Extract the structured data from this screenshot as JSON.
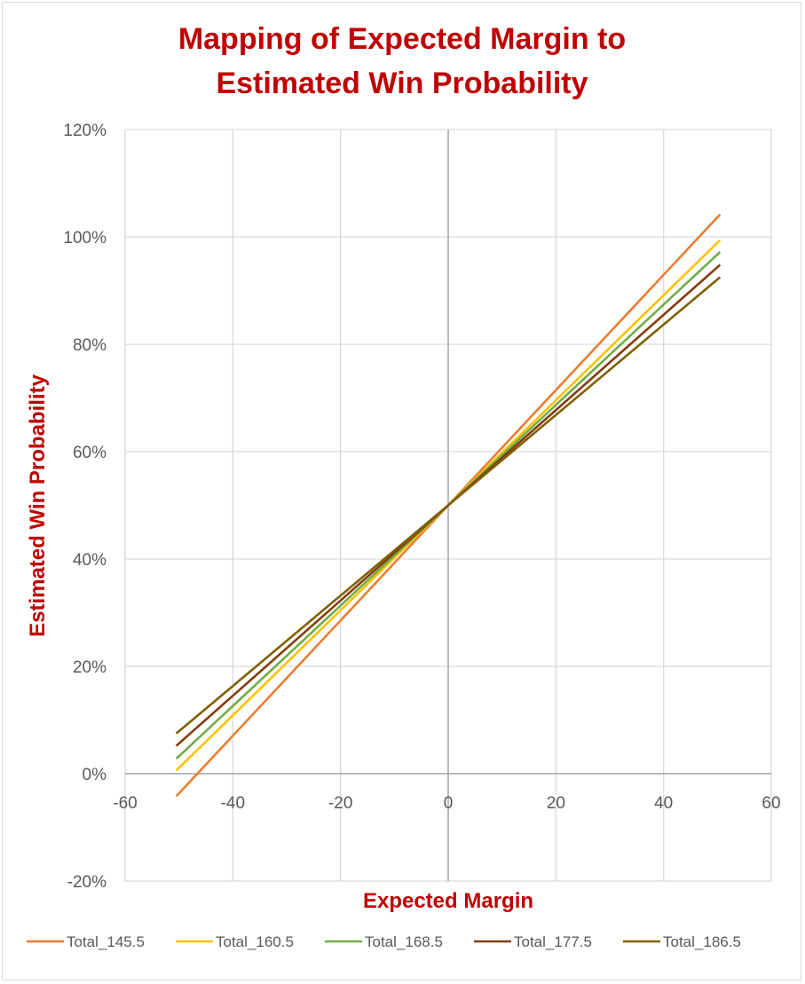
{
  "chart_data": {
    "type": "line",
    "title_line1": "Mapping of Expected Margin to",
    "title_line2": "Estimated Win Probability",
    "xlabel": "Expected Margin",
    "ylabel": "Estimated Win Probability",
    "xlim": [
      -60,
      60
    ],
    "ylim": [
      -20,
      120
    ],
    "x_ticks": [
      -60,
      -40,
      -20,
      0,
      20,
      40,
      60
    ],
    "x_tick_labels": [
      "-60",
      "-40",
      "-20",
      "0",
      "20",
      "40",
      "60"
    ],
    "y_ticks": [
      -20,
      0,
      20,
      40,
      60,
      80,
      100,
      120
    ],
    "y_tick_labels": [
      "-20%",
      "0%",
      "20%",
      "40%",
      "60%",
      "80%",
      "100%",
      "120%"
    ],
    "grid": true,
    "legend_position": "bottom",
    "x": [
      -50.5,
      0,
      50.5
    ],
    "series": [
      {
        "name": "Total_145.5",
        "color": "#ed7d31",
        "values": [
          -4.2,
          50,
          104.2
        ]
      },
      {
        "name": "Total_160.5",
        "color": "#ffc000",
        "values": [
          0.6,
          50,
          99.4
        ]
      },
      {
        "name": "Total_168.5",
        "color": "#70ad47",
        "values": [
          2.8,
          50,
          97.2
        ]
      },
      {
        "name": "Total_177.5",
        "color": "#843c0c",
        "values": [
          5.2,
          50,
          94.8
        ]
      },
      {
        "name": "Total_186.5",
        "color": "#7f6000",
        "values": [
          7.5,
          50,
          92.5
        ]
      }
    ]
  }
}
